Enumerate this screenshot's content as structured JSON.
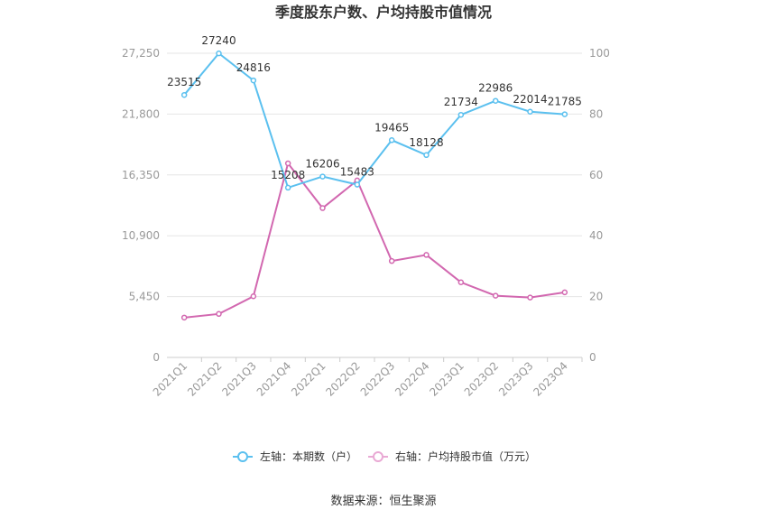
{
  "chart_data": {
    "type": "line",
    "title": "季度股东户数、户均持股市值情况",
    "categories": [
      "2021Q1",
      "2021Q2",
      "2021Q3",
      "2021Q4",
      "2022Q1",
      "2022Q2",
      "2022Q3",
      "2022Q4",
      "2023Q1",
      "2023Q2",
      "2023Q3",
      "2023Q4"
    ],
    "series": [
      {
        "name": "左轴：本期数（户）",
        "axis": "left",
        "color": "#5bc0ef",
        "values": [
          23515,
          27240,
          24816,
          15208,
          16206,
          15483,
          19465,
          18128,
          21734,
          22986,
          22014,
          21785
        ],
        "labels": [
          "23515",
          "27240",
          "24816",
          "15208",
          "16206",
          "15483",
          "19465",
          "18128",
          "21734",
          "22986",
          "22014",
          "21785"
        ]
      },
      {
        "name": "右轴：户均持股市值（万元）",
        "axis": "right",
        "color": "#d268b0",
        "values": [
          13.1,
          14.3,
          20.1,
          63.8,
          49.1,
          58.2,
          31.7,
          33.7,
          24.7,
          20.3,
          19.7,
          21.4
        ]
      }
    ],
    "left_axis": {
      "min": 0,
      "max": 27250,
      "ticks": [
        0,
        5450,
        10900,
        16350,
        21800,
        27250
      ],
      "tick_labels": [
        "0",
        "5,450",
        "10,900",
        "16,350",
        "21,800",
        "27,250"
      ]
    },
    "right_axis": {
      "min": 0,
      "max": 100,
      "ticks": [
        0,
        20,
        40,
        60,
        80,
        100
      ],
      "tick_labels": [
        "0",
        "20",
        "40",
        "60",
        "80",
        "100"
      ]
    },
    "grid": true,
    "legend_position": "bottom",
    "source": "数据来源：恒生聚源"
  }
}
